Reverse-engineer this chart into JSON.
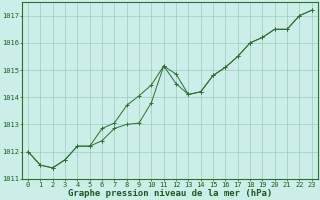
{
  "title": "Graphe pression niveau de la mer (hPa)",
  "background_color": "#cceee8",
  "grid_color": "#99ccbb",
  "line_color": "#2d6e2d",
  "marker_color": "#2d6e2d",
  "xlim": [
    -0.5,
    23.5
  ],
  "ylim": [
    1011.0,
    1017.5
  ],
  "yticks": [
    1011,
    1012,
    1013,
    1014,
    1015,
    1016,
    1017
  ],
  "xticks": [
    0,
    1,
    2,
    3,
    4,
    5,
    6,
    7,
    8,
    9,
    10,
    11,
    12,
    13,
    14,
    15,
    16,
    17,
    18,
    19,
    20,
    21,
    22,
    23
  ],
  "series1_x": [
    0,
    1,
    2,
    3,
    4,
    5,
    6,
    7,
    8,
    9,
    10,
    11,
    12,
    13,
    14,
    15,
    16,
    17,
    18,
    19,
    20,
    21,
    22,
    23
  ],
  "series1_y": [
    1012.0,
    1011.5,
    1011.4,
    1011.7,
    1012.2,
    1012.2,
    1012.4,
    1012.85,
    1013.0,
    1013.05,
    1013.8,
    1015.15,
    1014.85,
    1014.1,
    1014.2,
    1014.8,
    1015.1,
    1015.5,
    1016.0,
    1016.2,
    1016.5,
    1016.5,
    1017.0,
    1017.2
  ],
  "series2_x": [
    0,
    1,
    2,
    3,
    4,
    5,
    6,
    7,
    8,
    9,
    10,
    11,
    12,
    13,
    14,
    15,
    16,
    17,
    18,
    19,
    20,
    21,
    22,
    23
  ],
  "series2_y": [
    1012.0,
    1011.5,
    1011.4,
    1011.7,
    1012.2,
    1012.2,
    1012.85,
    1013.05,
    1013.7,
    1014.05,
    1014.45,
    1015.15,
    1014.5,
    1014.1,
    1014.2,
    1014.8,
    1015.1,
    1015.5,
    1016.0,
    1016.2,
    1016.5,
    1016.5,
    1017.0,
    1017.2
  ],
  "title_fontsize": 6.5,
  "tick_fontsize": 5.0,
  "title_color": "#1a5c1a",
  "tick_color": "#1a5c1a",
  "spine_color": "#2d6e2d"
}
